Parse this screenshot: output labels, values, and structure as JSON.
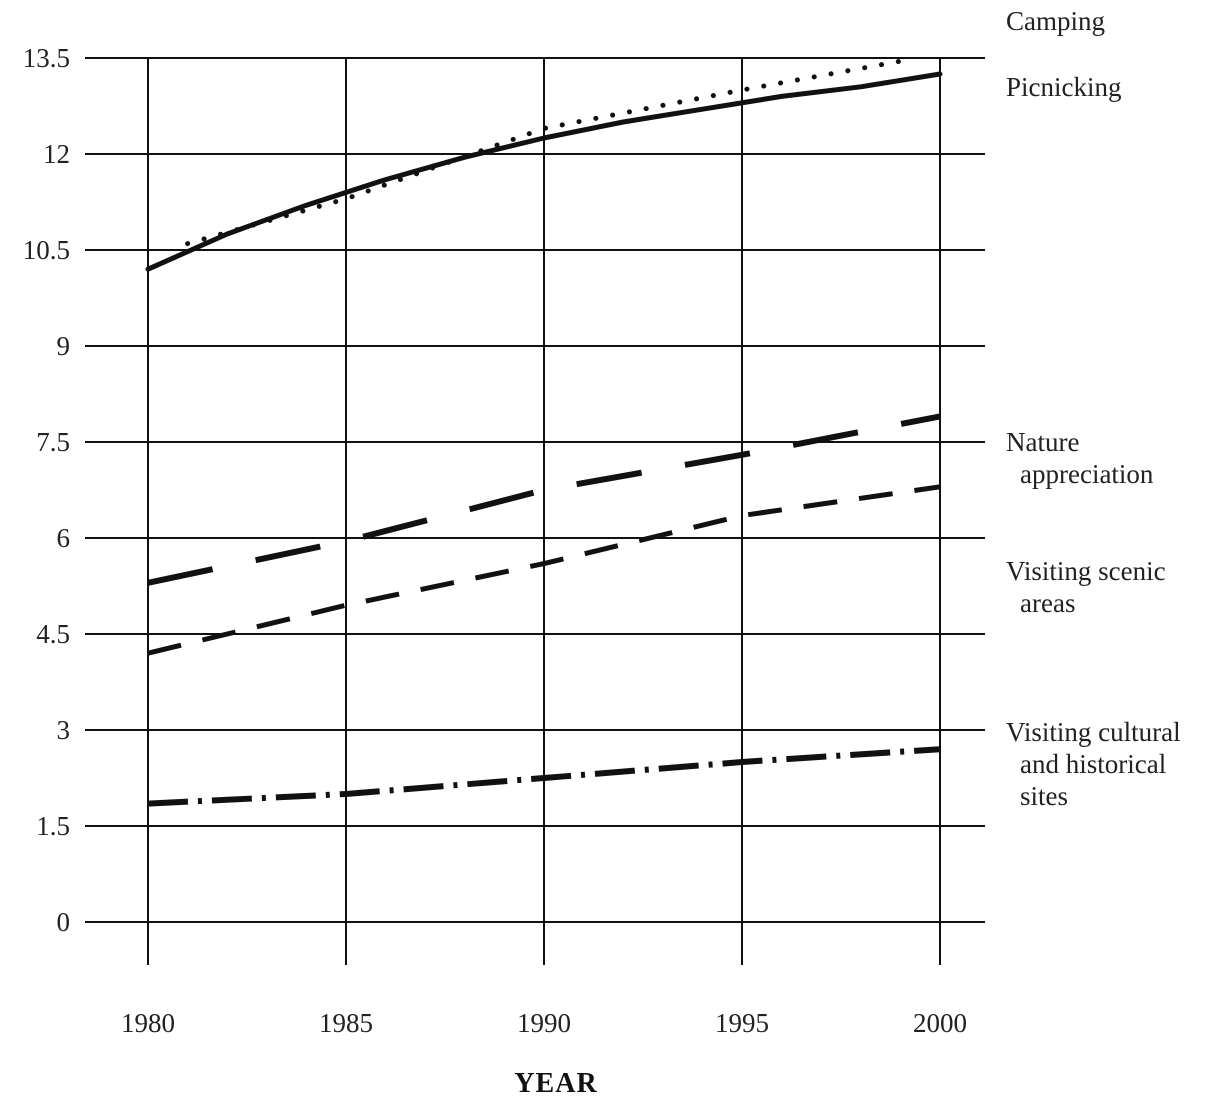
{
  "chart_data": {
    "type": "line",
    "title": "",
    "xlabel": "YEAR",
    "ylabel": "",
    "x": [
      1980,
      1985,
      1990,
      1995,
      2000
    ],
    "xlim": [
      1980,
      2000
    ],
    "ylim": [
      0,
      13.5
    ],
    "yticks": [
      "0",
      "1.5",
      "3",
      "4.5",
      "6",
      "7.5",
      "9",
      "10.5",
      "12",
      "13.5"
    ],
    "xticks": [
      "1980",
      "1985",
      "1990",
      "1995",
      "2000"
    ],
    "grid": true,
    "legend": "right",
    "series": [
      {
        "name": "Camping",
        "style": "dotted",
        "points": [
          [
            1981,
            10.6
          ],
          [
            1985,
            11.3
          ],
          [
            1990,
            12.4
          ],
          [
            1995,
            13.0
          ],
          [
            1999,
            13.45
          ]
        ]
      },
      {
        "name": "Picnicking",
        "style": "solid",
        "points": [
          [
            1980,
            10.2
          ],
          [
            1982,
            10.75
          ],
          [
            1984,
            11.2
          ],
          [
            1986,
            11.6
          ],
          [
            1988,
            11.95
          ],
          [
            1990,
            12.25
          ],
          [
            1992,
            12.5
          ],
          [
            1994,
            12.7
          ],
          [
            1996,
            12.9
          ],
          [
            1998,
            13.05
          ],
          [
            2000,
            13.25
          ]
        ]
      },
      {
        "name": "Nature appreciation",
        "style": "long-dash",
        "points": [
          [
            1980,
            5.3
          ],
          [
            1985,
            5.95
          ],
          [
            1990,
            6.75
          ],
          [
            1995,
            7.3
          ],
          [
            2000,
            7.9
          ]
        ]
      },
      {
        "name": "Visiting scenic areas",
        "style": "dash",
        "points": [
          [
            1980,
            4.2
          ],
          [
            1985,
            4.95
          ],
          [
            1990,
            5.6
          ],
          [
            1995,
            6.35
          ],
          [
            2000,
            6.8
          ]
        ]
      },
      {
        "name": "Visiting cultural and historical sites",
        "style": "dash-dot",
        "points": [
          [
            1980,
            1.85
          ],
          [
            1985,
            2.0
          ],
          [
            1990,
            2.25
          ],
          [
            1995,
            2.5
          ],
          [
            2000,
            2.7
          ]
        ]
      }
    ]
  },
  "legend_labels": {
    "camping": [
      "Camping"
    ],
    "picnicking": [
      "Picnicking"
    ],
    "nature": [
      "Nature",
      "appreciation"
    ],
    "scenic": [
      "Visiting scenic",
      "areas"
    ],
    "cultural": [
      "Visiting cultural",
      "and historical",
      "sites"
    ]
  }
}
